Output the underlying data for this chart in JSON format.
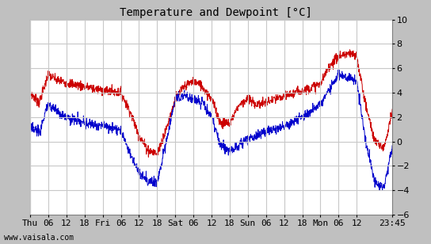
{
  "title": "Temperature and Dewpoint [°C]",
  "watermark": "www.vaisala.com",
  "ylim": [
    -6,
    10
  ],
  "yticks": [
    -6,
    -4,
    -2,
    0,
    2,
    4,
    6,
    8,
    10
  ],
  "temp_color": "#cc0000",
  "dewp_color": "#0000cc",
  "bg_color": "#c0c0c0",
  "plot_bg_color": "#ffffff",
  "grid_color": "#c8c8c8",
  "title_fontsize": 10,
  "tick_fontsize": 8,
  "line_width": 0.7,
  "xtick_labels": [
    "Thu",
    "06",
    "12",
    "18",
    "Fri",
    "06",
    "12",
    "18",
    "Sat",
    "06",
    "12",
    "18",
    "Sun",
    "06",
    "12",
    "18",
    "Mon",
    "06",
    "12",
    "23:45"
  ],
  "xtick_positions": [
    0,
    6,
    12,
    18,
    24,
    30,
    36,
    42,
    48,
    54,
    60,
    66,
    72,
    78,
    84,
    90,
    96,
    102,
    108,
    119.75
  ],
  "xlim": [
    0,
    119.75
  ],
  "noise_std": 0.2
}
